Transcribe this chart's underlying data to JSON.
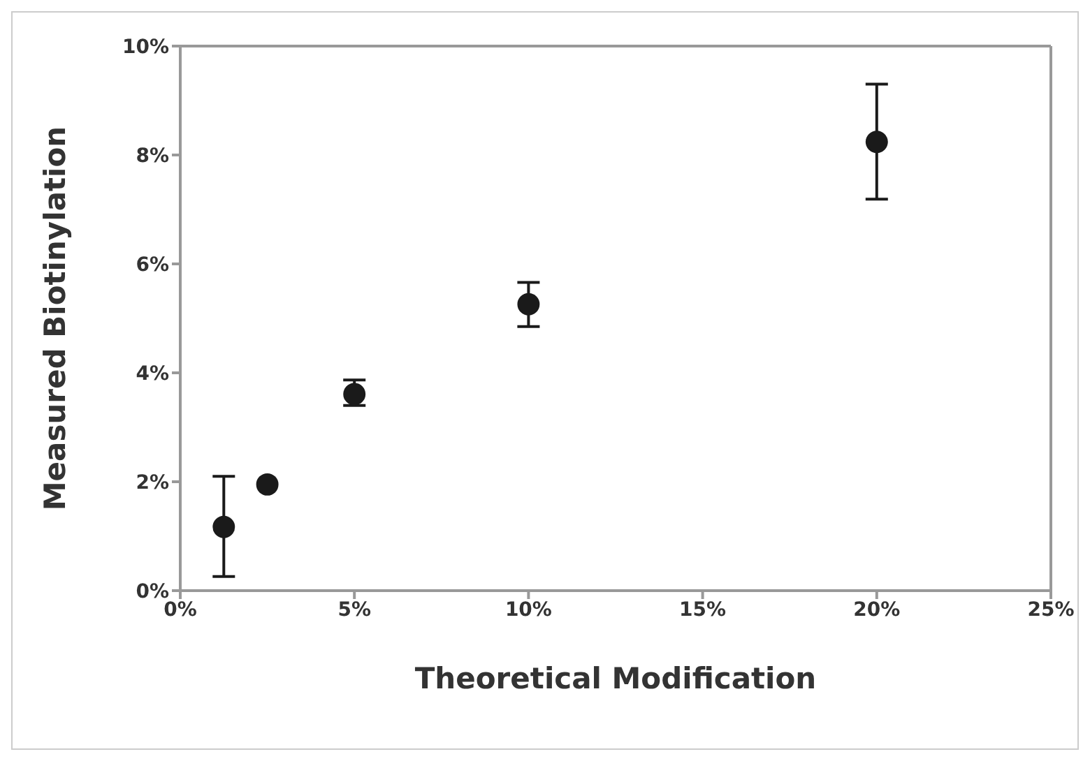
{
  "chart_data": {
    "type": "scatter",
    "xlabel": "Theoretical Modification",
    "ylabel": "Measured Biotinylation",
    "x": [
      1.25,
      2.5,
      5,
      10,
      20
    ],
    "series": [
      {
        "color": "#1a1a1a",
        "values": [
          1.17,
          1.95,
          3.61,
          5.26,
          8.24
        ],
        "errors": [
          [
            0.26,
            2.1
          ],
          null,
          [
            3.4,
            3.87
          ],
          [
            4.85,
            5.66
          ],
          [
            7.19,
            9.3
          ]
        ]
      }
    ],
    "xlim": [
      0,
      25
    ],
    "xticks": [
      {
        "value": 0,
        "label": "0%"
      },
      {
        "value": 5,
        "label": "5%"
      },
      {
        "value": 10,
        "label": "10%"
      },
      {
        "value": 15,
        "label": "15%"
      },
      {
        "value": 20,
        "label": "20%"
      },
      {
        "value": 25,
        "label": "25%"
      }
    ],
    "ylim": [
      0,
      10
    ],
    "yticks": [
      {
        "value": 0,
        "label": "0%"
      },
      {
        "value": 2,
        "label": "2%"
      },
      {
        "value": 4,
        "label": "4%"
      },
      {
        "value": 6,
        "label": "6%"
      },
      {
        "value": 8,
        "label": "8%"
      },
      {
        "value": 10,
        "label": "10%"
      }
    ],
    "marker": "circle",
    "grid": false,
    "legend": false
  }
}
